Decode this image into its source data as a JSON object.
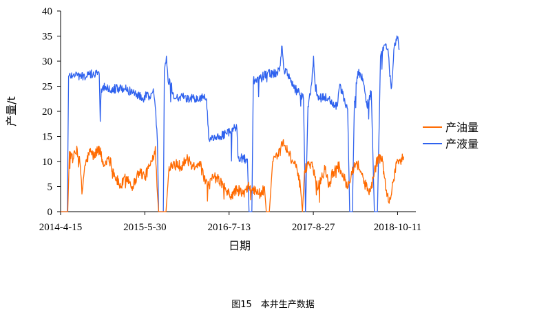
{
  "caption": "图15　本井生产数据",
  "chart_data": {
    "type": "line",
    "title": "",
    "xlabel": "日期",
    "ylabel": "产量/t",
    "ylim": [
      0,
      40
    ],
    "yticks": [
      0,
      5,
      10,
      15,
      20,
      25,
      30,
      35,
      40
    ],
    "x_range": [
      "2014-04-15",
      "2019-01-08"
    ],
    "xtick_labels": [
      "2014-4-15",
      "2015-5-30",
      "2016-7-13",
      "2017-8-27",
      "2018-10-11"
    ],
    "grid": false,
    "legend_position": "right",
    "series": [
      {
        "name": "产油量",
        "color": "#ff6a00",
        "points": [
          [
            "2014-04-15",
            0
          ],
          [
            "2014-05-20",
            0
          ],
          [
            "2014-05-28",
            12
          ],
          [
            "2014-06-15",
            10.5
          ],
          [
            "2014-07-05",
            12.5
          ],
          [
            "2014-07-20",
            9
          ],
          [
            "2014-07-28",
            3.5
          ],
          [
            "2014-08-10",
            9
          ],
          [
            "2014-09-05",
            12
          ],
          [
            "2014-09-25",
            11
          ],
          [
            "2014-10-20",
            13
          ],
          [
            "2014-11-10",
            9
          ],
          [
            "2014-12-05",
            11
          ],
          [
            "2015-01-05",
            7
          ],
          [
            "2015-02-01",
            5
          ],
          [
            "2015-03-01",
            7
          ],
          [
            "2015-04-01",
            5
          ],
          [
            "2015-05-01",
            8
          ],
          [
            "2015-06-01",
            7
          ],
          [
            "2015-06-20",
            9
          ],
          [
            "2015-07-05",
            10
          ],
          [
            "2015-07-20",
            13
          ],
          [
            "2015-07-28",
            5
          ],
          [
            "2015-08-05",
            0
          ],
          [
            "2015-08-25",
            0
          ],
          [
            "2015-09-10",
            0
          ],
          [
            "2015-09-25",
            9
          ],
          [
            "2015-10-20",
            10
          ],
          [
            "2015-11-20",
            9
          ],
          [
            "2015-12-20",
            10.5
          ],
          [
            "2016-01-20",
            9
          ],
          [
            "2016-02-20",
            10
          ],
          [
            "2016-03-10",
            7
          ],
          [
            "2016-04-01",
            5
          ],
          [
            "2016-05-01",
            7
          ],
          [
            "2016-06-01",
            6
          ],
          [
            "2016-07-01",
            4
          ],
          [
            "2016-07-20",
            3
          ],
          [
            "2016-08-20",
            4.5
          ],
          [
            "2016-09-20",
            3.5
          ],
          [
            "2016-10-20",
            5
          ],
          [
            "2016-11-20",
            4
          ],
          [
            "2016-12-20",
            3.5
          ],
          [
            "2017-01-01",
            5
          ],
          [
            "2017-01-10",
            0
          ],
          [
            "2017-01-25",
            0
          ],
          [
            "2017-02-10",
            10
          ],
          [
            "2017-03-10",
            11
          ],
          [
            "2017-04-01",
            14
          ],
          [
            "2017-04-25",
            12
          ],
          [
            "2017-05-20",
            10
          ],
          [
            "2017-06-10",
            8
          ],
          [
            "2017-06-25",
            5
          ],
          [
            "2017-07-05",
            0
          ],
          [
            "2017-07-15",
            8
          ],
          [
            "2017-08-05",
            10
          ],
          [
            "2017-08-25",
            9
          ],
          [
            "2017-09-15",
            5
          ],
          [
            "2017-10-10",
            7
          ],
          [
            "2017-10-25",
            9
          ],
          [
            "2017-11-10",
            5
          ],
          [
            "2017-12-01",
            8
          ],
          [
            "2018-01-01",
            9
          ],
          [
            "2018-01-20",
            7
          ],
          [
            "2018-02-10",
            5
          ],
          [
            "2018-03-01",
            8
          ],
          [
            "2018-03-25",
            10
          ],
          [
            "2018-04-15",
            8
          ],
          [
            "2018-05-10",
            5
          ],
          [
            "2018-06-01",
            4
          ],
          [
            "2018-06-20",
            8
          ],
          [
            "2018-07-10",
            11
          ],
          [
            "2018-07-30",
            10
          ],
          [
            "2018-08-20",
            3
          ],
          [
            "2018-09-05",
            2.5
          ],
          [
            "2018-09-20",
            6
          ],
          [
            "2018-10-05",
            10
          ],
          [
            "2018-10-25",
            10
          ],
          [
            "2018-11-10",
            11
          ]
        ]
      },
      {
        "name": "产液量",
        "color": "#2f62ee",
        "points": [
          [
            "2014-04-15",
            0
          ],
          [
            "2014-05-18",
            0
          ],
          [
            "2014-05-24",
            27
          ],
          [
            "2014-06-20",
            27.5
          ],
          [
            "2014-07-20",
            27
          ],
          [
            "2014-08-20",
            27
          ],
          [
            "2014-09-20",
            27.5
          ],
          [
            "2014-10-20",
            27.5
          ],
          [
            "2014-10-25",
            18
          ],
          [
            "2014-10-30",
            24.5
          ],
          [
            "2014-11-20",
            25
          ],
          [
            "2014-12-20",
            24.5
          ],
          [
            "2015-01-20",
            24.5
          ],
          [
            "2015-02-20",
            24.5
          ],
          [
            "2015-03-20",
            24
          ],
          [
            "2015-04-20",
            23.5
          ],
          [
            "2015-05-20",
            22.5
          ],
          [
            "2015-06-10",
            23.5
          ],
          [
            "2015-06-25",
            22.5
          ],
          [
            "2015-07-10",
            24.5
          ],
          [
            "2015-07-22",
            20
          ],
          [
            "2015-07-30",
            14
          ],
          [
            "2015-08-05",
            0
          ],
          [
            "2015-08-28",
            0
          ],
          [
            "2015-09-02",
            28
          ],
          [
            "2015-09-12",
            31
          ],
          [
            "2015-09-20",
            26
          ],
          [
            "2015-10-05",
            25.5
          ],
          [
            "2015-10-20",
            22.5
          ],
          [
            "2015-11-20",
            23
          ],
          [
            "2015-12-20",
            22.5
          ],
          [
            "2016-01-20",
            22.5
          ],
          [
            "2016-02-20",
            22.5
          ],
          [
            "2016-03-10",
            23
          ],
          [
            "2016-03-25",
            22.5
          ],
          [
            "2016-04-05",
            14.5
          ],
          [
            "2016-05-01",
            14.5
          ],
          [
            "2016-06-01",
            15
          ],
          [
            "2016-07-01",
            15.5
          ],
          [
            "2016-07-20",
            16
          ],
          [
            "2016-08-05",
            16.5
          ],
          [
            "2016-08-20",
            16.5
          ],
          [
            "2016-08-25",
            11
          ],
          [
            "2016-09-20",
            10.5
          ],
          [
            "2016-10-10",
            10.5
          ],
          [
            "2016-10-18",
            0
          ],
          [
            "2016-11-01",
            0
          ],
          [
            "2016-11-08",
            26
          ],
          [
            "2016-12-10",
            26.5
          ],
          [
            "2017-01-15",
            27.5
          ],
          [
            "2017-02-15",
            27.5
          ],
          [
            "2017-03-15",
            28
          ],
          [
            "2017-03-28",
            33
          ],
          [
            "2017-04-05",
            28.5
          ],
          [
            "2017-04-25",
            27.5
          ],
          [
            "2017-05-20",
            25
          ],
          [
            "2017-06-20",
            23.5
          ],
          [
            "2017-07-10",
            22.5
          ],
          [
            "2017-07-20",
            0
          ],
          [
            "2017-08-01",
            21
          ],
          [
            "2017-08-20",
            26
          ],
          [
            "2017-08-28",
            31
          ],
          [
            "2017-09-05",
            25
          ],
          [
            "2017-09-25",
            22.5
          ],
          [
            "2017-10-20",
            23
          ],
          [
            "2017-11-20",
            22
          ],
          [
            "2017-12-20",
            21
          ],
          [
            "2018-01-01",
            25
          ],
          [
            "2018-01-20",
            23
          ],
          [
            "2018-02-10",
            20.5
          ],
          [
            "2018-02-20",
            0
          ],
          [
            "2018-03-05",
            0
          ],
          [
            "2018-03-15",
            22
          ],
          [
            "2018-04-01",
            28
          ],
          [
            "2018-04-25",
            26.5
          ],
          [
            "2018-05-15",
            21
          ],
          [
            "2018-06-05",
            24
          ],
          [
            "2018-06-20",
            0
          ],
          [
            "2018-07-05",
            0
          ],
          [
            "2018-07-20",
            31
          ],
          [
            "2018-08-05",
            33
          ],
          [
            "2018-08-25",
            32.5
          ],
          [
            "2018-09-10",
            24.5
          ],
          [
            "2018-09-25",
            33
          ],
          [
            "2018-10-10",
            34.5
          ],
          [
            "2018-10-20",
            32.5
          ]
        ]
      }
    ]
  }
}
